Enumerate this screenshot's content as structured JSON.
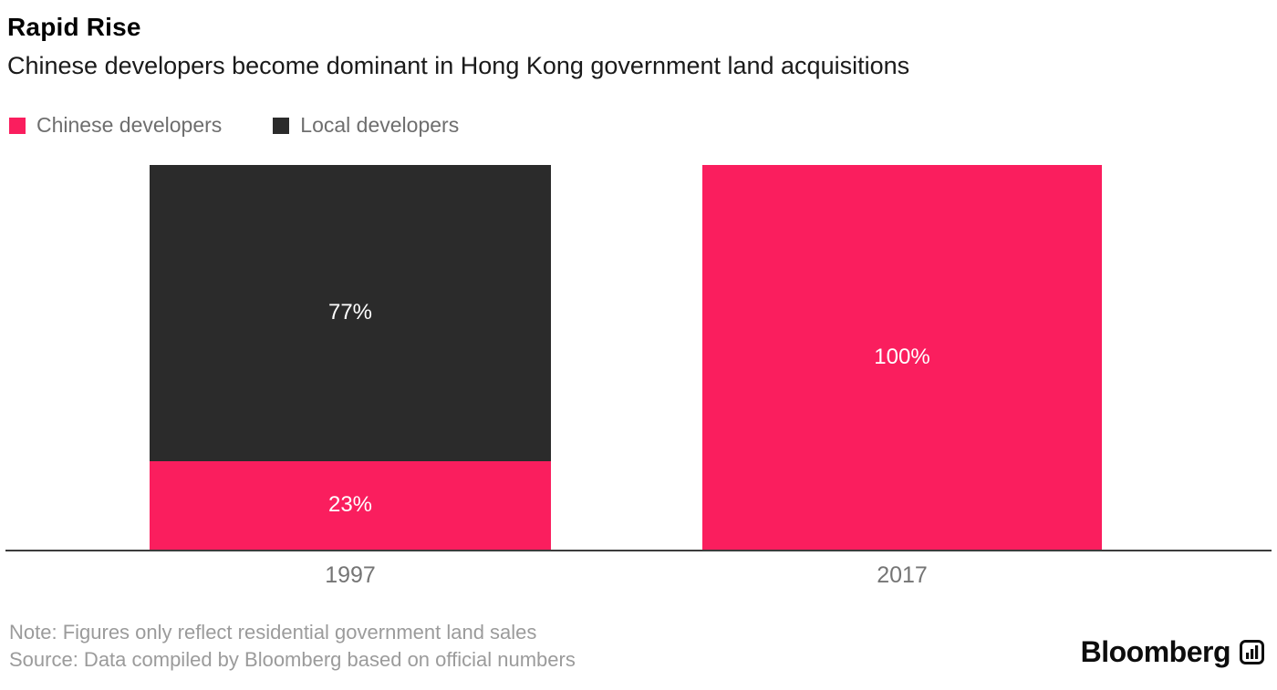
{
  "chart_data": {
    "type": "bar",
    "stacked": true,
    "title": "Rapid Rise",
    "subtitle": "Chinese developers become dominant in Hong Kong government land acquisitions",
    "categories": [
      "1997",
      "2017"
    ],
    "series": [
      {
        "name": "Chinese developers",
        "key": "chinese-developers",
        "color": "#fa1e5e",
        "values": [
          23,
          100
        ]
      },
      {
        "name": "Local developers",
        "key": "local-developers",
        "color": "#2b2b2b",
        "values": [
          77,
          0
        ]
      }
    ],
    "value_suffix": "%",
    "data_labels": [
      "23%",
      "77%",
      "100%"
    ],
    "ylim": [
      0,
      100
    ],
    "grid": false,
    "legend_position": "top-left",
    "bar_label_color": "#ffffff"
  },
  "footer": {
    "note": "Note: Figures only reflect residential government land sales",
    "source": "Source: Data compiled by Bloomberg based on official numbers"
  },
  "brand": {
    "name": "Bloomberg",
    "icon": "bar-chart-icon"
  }
}
